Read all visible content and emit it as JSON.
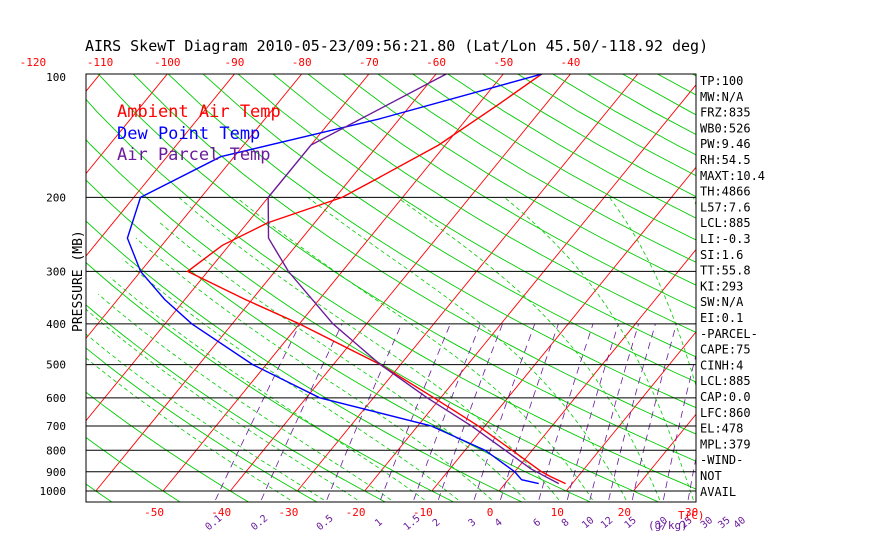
{
  "chart_data": {
    "type": "line",
    "title": "AIRS SkewT Diagram 2010-05-23/09:56:21.80 (Lat/Lon 45.50/-118.92 deg)",
    "ylabel": "PRESSURE (MB)",
    "xlabel_temp": "T(C)",
    "xlabel_mix": "(g/kg)",
    "pressure_ticks": [
      "100",
      "200",
      "300",
      "400",
      "500",
      "600",
      "700",
      "800",
      "900",
      "1000"
    ],
    "top_temp_ticks": [
      "-120",
      "-110",
      "-100",
      "-90",
      "-80",
      "-70",
      "-60",
      "-50",
      "-40"
    ],
    "bottom_temp_ticks": [
      "-50",
      "-40",
      "-30",
      "-20",
      "-10",
      "0",
      "10",
      "20",
      "30"
    ],
    "mixing_ratio_ticks": [
      "0.1",
      "0.2",
      "0.5",
      "1",
      "1.5",
      "2",
      "3",
      "4",
      "6",
      "8",
      "10",
      "12",
      "15",
      "20",
      "25",
      "30",
      "35",
      "40"
    ],
    "legend": [
      "Ambient Air Temp",
      "Dew Point Temp",
      "Air Parcel Temp"
    ],
    "series": [
      {
        "name": "Ambient Air Temp",
        "color": "#ff0000",
        "points": [
          {
            "p": 100,
            "t": -44
          },
          {
            "p": 120,
            "t": -47
          },
          {
            "p": 150,
            "t": -51
          },
          {
            "p": 180,
            "t": -56
          },
          {
            "p": 200,
            "t": -59
          },
          {
            "p": 230,
            "t": -67
          },
          {
            "p": 260,
            "t": -71
          },
          {
            "p": 300,
            "t": -73
          },
          {
            "p": 350,
            "t": -61
          },
          {
            "p": 400,
            "t": -50
          },
          {
            "p": 500,
            "t": -33
          },
          {
            "p": 600,
            "t": -21
          },
          {
            "p": 700,
            "t": -11
          },
          {
            "p": 800,
            "t": -3
          },
          {
            "p": 900,
            "t": 4
          },
          {
            "p": 925,
            "t": 6
          },
          {
            "p": 960,
            "t": 9
          }
        ]
      },
      {
        "name": "Dew Point Temp",
        "color": "#0000ff",
        "points": [
          {
            "p": 100,
            "t": -43
          },
          {
            "p": 130,
            "t": -63
          },
          {
            "p": 160,
            "t": -82
          },
          {
            "p": 200,
            "t": -89
          },
          {
            "p": 250,
            "t": -86
          },
          {
            "p": 300,
            "t": -80
          },
          {
            "p": 350,
            "t": -73
          },
          {
            "p": 400,
            "t": -66
          },
          {
            "p": 500,
            "t": -52
          },
          {
            "p": 600,
            "t": -38
          },
          {
            "p": 700,
            "t": -18
          },
          {
            "p": 800,
            "t": -7
          },
          {
            "p": 900,
            "t": 0
          },
          {
            "p": 940,
            "t": 2
          },
          {
            "p": 960,
            "t": 5
          }
        ]
      },
      {
        "name": "Air Parcel Temp",
        "color": "#6a1b9a",
        "points": [
          {
            "p": 100,
            "t": -58
          },
          {
            "p": 150,
            "t": -70
          },
          {
            "p": 200,
            "t": -70
          },
          {
            "p": 250,
            "t": -65
          },
          {
            "p": 300,
            "t": -58
          },
          {
            "p": 400,
            "t": -45
          },
          {
            "p": 500,
            "t": -33
          },
          {
            "p": 600,
            "t": -22
          },
          {
            "p": 700,
            "t": -12
          },
          {
            "p": 800,
            "t": -4
          },
          {
            "p": 885,
            "t": 2
          },
          {
            "p": 960,
            "t": 8
          }
        ]
      }
    ]
  },
  "indices": [
    "TP:100",
    "MW:N/A",
    "FRZ:835",
    "WB0:526",
    "PW:9.46",
    "RH:54.5",
    "MAXT:10.4",
    "TH:4866",
    "L57:7.6",
    "LCL:885",
    "LI:-0.3",
    "SI:1.6",
    "TT:55.8",
    "KI:293",
    "SW:N/A",
    "EI:0.1",
    "-PARCEL-",
    "CAPE:75",
    "CINH:4",
    "LCL:885",
    "CAP:0.0",
    "LFC:860",
    "EL:478",
    "MPL:379",
    "-WIND-",
    " NOT",
    " AVAIL"
  ],
  "colors": {
    "isotherm": "#ff0000",
    "dry_adiabat": "#00cc00",
    "moist_adiabat": "#00cc00",
    "mixing_ratio": "#6a1b9a",
    "isobar": "#000000",
    "axis_text": "#000000",
    "temp_tick_text": "#ff0000",
    "mix_tick_text": "#6a1b9a"
  }
}
